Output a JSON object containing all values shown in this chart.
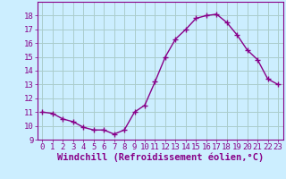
{
  "x": [
    0,
    1,
    2,
    3,
    4,
    5,
    6,
    7,
    8,
    9,
    10,
    11,
    12,
    13,
    14,
    15,
    16,
    17,
    18,
    19,
    20,
    21,
    22,
    23
  ],
  "y": [
    11.0,
    10.9,
    10.5,
    10.3,
    9.9,
    9.7,
    9.7,
    9.4,
    9.7,
    11.0,
    11.5,
    13.2,
    15.0,
    16.3,
    17.0,
    17.8,
    18.0,
    18.1,
    17.5,
    16.6,
    15.5,
    14.8,
    13.4,
    13.0
  ],
  "line_color": "#880088",
  "marker": "+",
  "marker_size": 4,
  "bg_color": "#cceeff",
  "grid_color": "#aacccc",
  "xlabel": "Windchill (Refroidissement éolien,°C)",
  "ylim": [
    9,
    19
  ],
  "xlim": [
    -0.5,
    23.5
  ],
  "yticks": [
    9,
    10,
    11,
    12,
    13,
    14,
    15,
    16,
    17,
    18
  ],
  "xticks": [
    0,
    1,
    2,
    3,
    4,
    5,
    6,
    7,
    8,
    9,
    10,
    11,
    12,
    13,
    14,
    15,
    16,
    17,
    18,
    19,
    20,
    21,
    22,
    23
  ],
  "axis_color": "#880088",
  "tick_color": "#880088",
  "xlabel_color": "#880088",
  "xlabel_fontsize": 7.5,
  "tick_fontsize": 6.5,
  "line_width": 1.0
}
